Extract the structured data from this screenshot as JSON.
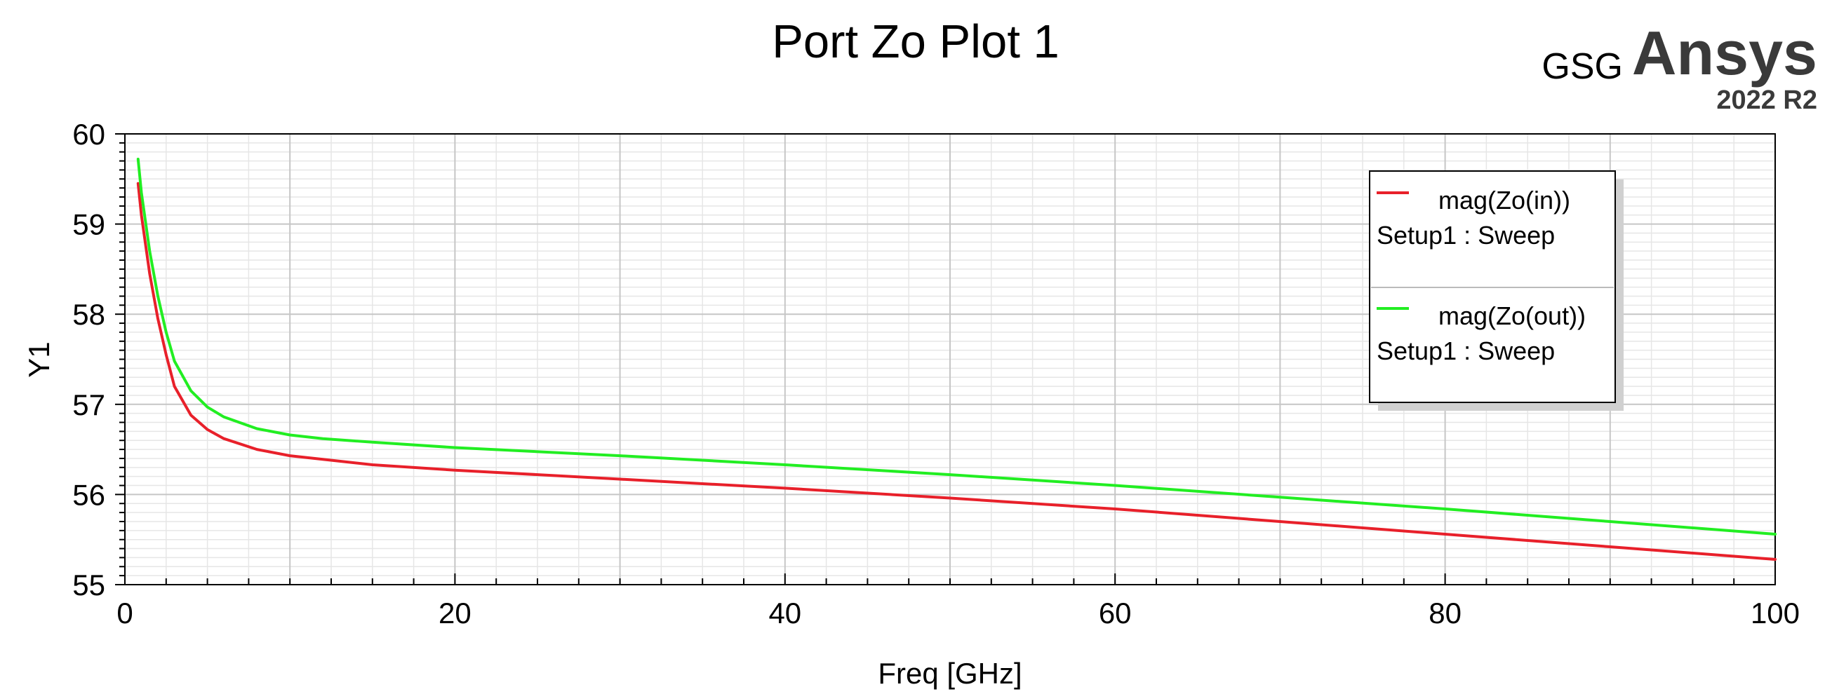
{
  "header": {
    "project": "GSG",
    "brand": "Ansys",
    "version": "2022 R2"
  },
  "chart_data": {
    "type": "line",
    "title": "Port Zo Plot 1",
    "xlabel": "Freq [GHz]",
    "ylabel": "Y1",
    "xlim": [
      0,
      100
    ],
    "ylim": [
      55,
      60
    ],
    "x_ticks": [
      "0",
      "20",
      "40",
      "60",
      "80",
      "100"
    ],
    "y_ticks": [
      "55",
      "56",
      "57",
      "58",
      "59",
      "60"
    ],
    "grid": true,
    "legend_position": "top-right",
    "series": [
      {
        "name": "mag(Zo(in))",
        "setup": "Setup1 : Sweep",
        "color": "#e8202a",
        "x": [
          0.8,
          1.0,
          1.5,
          2.0,
          2.5,
          3.0,
          4.0,
          5.0,
          6.0,
          8.0,
          10.0,
          12.0,
          15.0,
          20.0,
          30.0,
          40.0,
          50.0,
          60.0,
          70.0,
          80.0,
          90.0,
          100.0
        ],
        "values": [
          59.45,
          59.1,
          58.45,
          57.95,
          57.55,
          57.2,
          56.88,
          56.72,
          56.62,
          56.5,
          56.43,
          56.39,
          56.33,
          56.27,
          56.17,
          56.07,
          55.96,
          55.84,
          55.7,
          55.56,
          55.42,
          55.28
        ]
      },
      {
        "name": "mag(Zo(out))",
        "setup": "Setup1 : Sweep",
        "color": "#22ee22",
        "x": [
          0.8,
          1.0,
          1.5,
          2.0,
          2.5,
          3.0,
          4.0,
          5.0,
          6.0,
          8.0,
          10.0,
          12.0,
          15.0,
          20.0,
          30.0,
          40.0,
          50.0,
          60.0,
          70.0,
          80.0,
          90.0,
          100.0
        ],
        "values": [
          59.72,
          59.35,
          58.7,
          58.2,
          57.8,
          57.48,
          57.15,
          56.97,
          56.86,
          56.73,
          56.66,
          56.62,
          56.58,
          56.52,
          56.43,
          56.33,
          56.22,
          56.1,
          55.97,
          55.84,
          55.7,
          55.56
        ]
      }
    ]
  }
}
